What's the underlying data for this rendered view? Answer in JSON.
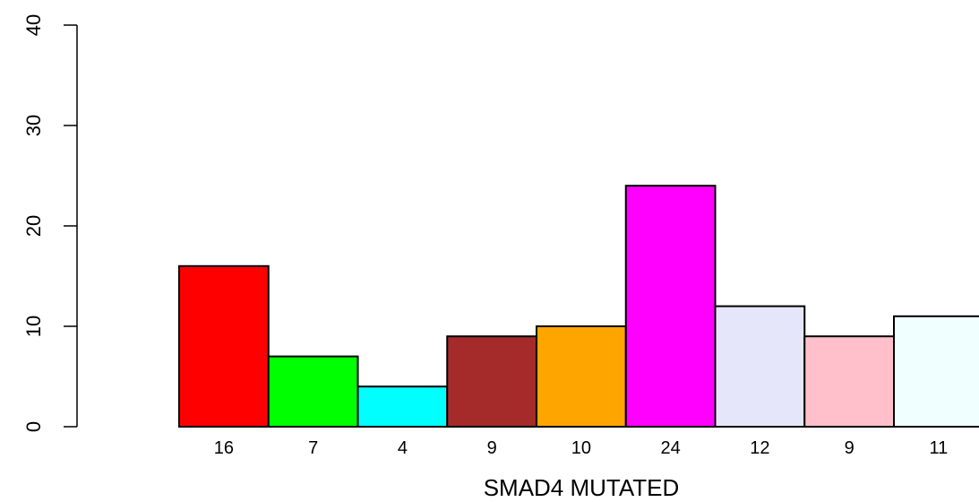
{
  "chart_data": {
    "type": "bar",
    "categories": [
      "16",
      "7",
      "4",
      "9",
      "10",
      "24",
      "12",
      "9",
      "11"
    ],
    "values": [
      16,
      7,
      4,
      9,
      10,
      24,
      12,
      9,
      11
    ],
    "colors": [
      "#FF0000",
      "#00FF00",
      "#00FFFF",
      "#A52A2A",
      "#FFA500",
      "#FF00FF",
      "#E6E6FA",
      "#FFC0CB",
      "#F0FFFF"
    ],
    "title": "",
    "xlabel": "SMAD4 MUTATED",
    "ylabel": "",
    "ylim": [
      0,
      40
    ],
    "yticks": [
      "0",
      "10",
      "20",
      "30",
      "40"
    ],
    "grid": false
  }
}
